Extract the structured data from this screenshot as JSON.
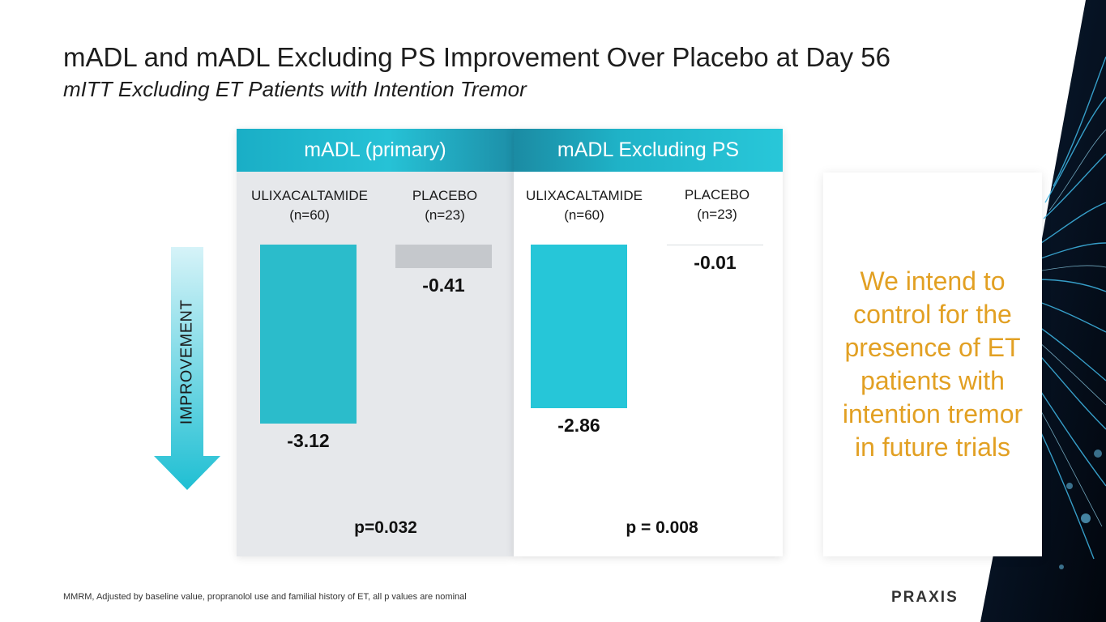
{
  "slide": {
    "title": "mADL and mADL Excluding PS Improvement Over Placebo at Day 56",
    "subtitle": "mITT Excluding ET Patients with Intention Tremor",
    "footnote": "MMRM, Adjusted by baseline value, propranolol use and familial history of ET, all p values are nominal",
    "logo": "PRAXIS",
    "arrow_label": "IMPROVEMENT",
    "callout": "We intend to control for the presence of ET patients with intention tremor in future trials"
  },
  "colors": {
    "teal": "#2bbccb",
    "placebo_grey": "#c5c8cc",
    "callout_orange": "#e2a023"
  },
  "chart_data": [
    {
      "type": "bar",
      "title": "mADL (primary)",
      "categories": [
        "ULIXACALTAMIDE (n=60)",
        "PLACEBO (n=23)"
      ],
      "cat_name": [
        "ULIXACALTAMIDE",
        "PLACEBO"
      ],
      "cat_n": [
        "(n=60)",
        "(n=23)"
      ],
      "values": [
        -3.12,
        -0.41
      ],
      "value_labels": [
        "-3.12",
        "-0.41"
      ],
      "p_value": "p=0.032",
      "ylim": [
        -3.5,
        0
      ]
    },
    {
      "type": "bar",
      "title": "mADL Excluding PS",
      "categories": [
        "ULIXACALTAMIDE (n=60)",
        "PLACEBO (n=23)"
      ],
      "cat_name": [
        "ULIXACALTAMIDE",
        "PLACEBO"
      ],
      "cat_n": [
        "(n=60)",
        "(n=23)"
      ],
      "values": [
        -2.86,
        -0.01
      ],
      "value_labels": [
        "-2.86",
        "-0.01"
      ],
      "p_value": "p = 0.008",
      "ylim": [
        -3.5,
        0
      ]
    }
  ]
}
